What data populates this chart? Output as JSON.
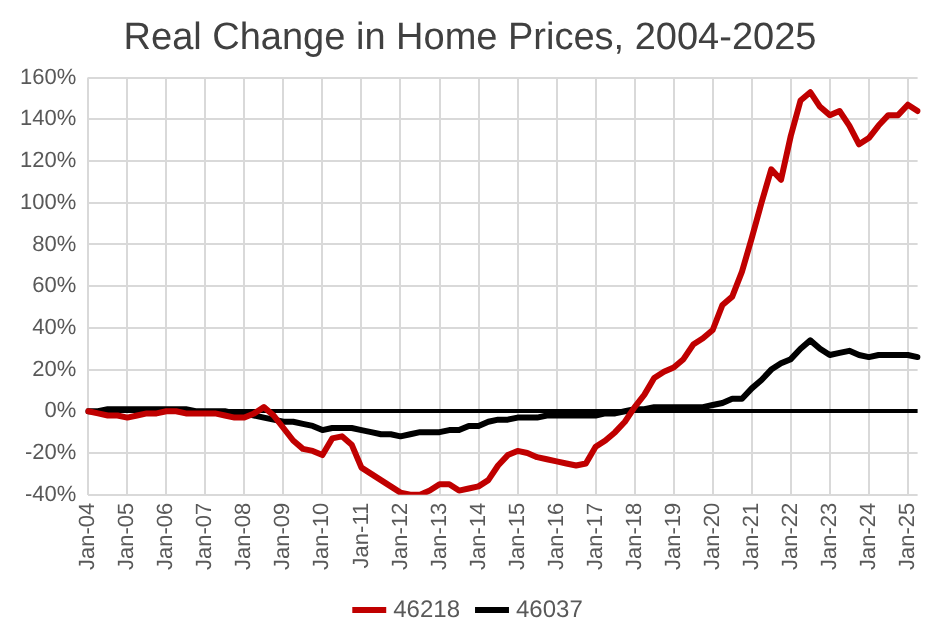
{
  "chart_data": {
    "type": "line",
    "title": "Real Change in Home Prices, 2004-2025",
    "categories": [
      "Jan-04",
      null,
      null,
      null,
      "Jan-05",
      null,
      null,
      null,
      "Jan-06",
      null,
      null,
      null,
      "Jan-07",
      null,
      null,
      null,
      "Jan-08",
      null,
      null,
      null,
      "Jan-09",
      null,
      null,
      null,
      "Jan-10",
      null,
      null,
      null,
      "Jan-11",
      null,
      null,
      null,
      "Jan-12",
      null,
      null,
      null,
      "Jan-13",
      null,
      null,
      null,
      "Jan-14",
      null,
      null,
      null,
      "Jan-15",
      null,
      null,
      null,
      "Jan-16",
      null,
      null,
      null,
      "Jan-17",
      null,
      null,
      null,
      "Jan-18",
      null,
      null,
      null,
      "Jan-19",
      null,
      null,
      null,
      "Jan-20",
      null,
      null,
      null,
      "Jan-21",
      null,
      null,
      null,
      "Jan-22",
      null,
      null,
      null,
      "Jan-23",
      null,
      null,
      null,
      "Jan-24",
      null,
      null,
      null,
      "Jan-25",
      null
    ],
    "series": [
      {
        "name": "46218",
        "color": "#c00000",
        "values": [
          0,
          -1,
          -2,
          -2,
          -3,
          -2,
          -1,
          -1,
          0,
          0,
          -1,
          -1,
          -1,
          -1,
          -2,
          -3,
          -3,
          -1,
          2,
          -2,
          -8,
          -14,
          -18,
          -19,
          -21,
          -13,
          -12,
          -16,
          -27,
          -30,
          -33,
          -36,
          -39,
          -40,
          -40,
          -38,
          -35,
          -35,
          -38,
          -37,
          -36,
          -33,
          -26,
          -21,
          -19,
          -20,
          -22,
          -23,
          -24,
          -25,
          -26,
          -25,
          -17,
          -14,
          -10,
          -5,
          2,
          8,
          16,
          19,
          21,
          25,
          32,
          35,
          39,
          51,
          55,
          67,
          83,
          100,
          116,
          111,
          132,
          149,
          153,
          146,
          142,
          144,
          137,
          128,
          131,
          137,
          142,
          142,
          147,
          144
        ]
      },
      {
        "name": "46037",
        "color": "#000000",
        "values": [
          0,
          0,
          1,
          1,
          1,
          1,
          1,
          1,
          1,
          1,
          1,
          0,
          0,
          0,
          0,
          -1,
          -1,
          -2,
          -3,
          -4,
          -5,
          -5,
          -6,
          -7,
          -9,
          -8,
          -8,
          -8,
          -9,
          -10,
          -11,
          -11,
          -12,
          -11,
          -10,
          -10,
          -10,
          -9,
          -9,
          -7,
          -7,
          -5,
          -4,
          -4,
          -3,
          -3,
          -3,
          -2,
          -2,
          -2,
          -2,
          -2,
          -2,
          -1,
          -1,
          0,
          1,
          1,
          2,
          2,
          2,
          2,
          2,
          2,
          3,
          4,
          6,
          6,
          11,
          15,
          20,
          23,
          25,
          30,
          34,
          30,
          27,
          28,
          29,
          27,
          26,
          27,
          27,
          27,
          27,
          26
        ]
      }
    ],
    "ylim": [
      -40,
      160
    ],
    "yticks": [
      {
        "value": -40,
        "label": "-40%"
      },
      {
        "value": -20,
        "label": "-20%"
      },
      {
        "value": 0,
        "label": "0%"
      },
      {
        "value": 20,
        "label": "20%"
      },
      {
        "value": 40,
        "label": "40%"
      },
      {
        "value": 60,
        "label": "60%"
      },
      {
        "value": 80,
        "label": "80%"
      },
      {
        "value": 100,
        "label": "100%"
      },
      {
        "value": 120,
        "label": "120%"
      },
      {
        "value": 140,
        "label": "140%"
      },
      {
        "value": 160,
        "label": "160%"
      }
    ],
    "grid": true,
    "legend": "bottom",
    "marker": "none",
    "line_style": "solid"
  }
}
